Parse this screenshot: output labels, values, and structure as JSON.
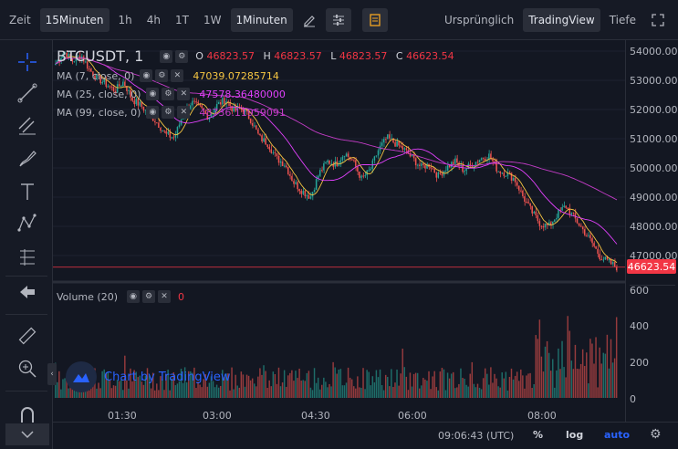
{
  "toolbar": {
    "items": [
      "Zeit",
      "15Minuten",
      "1h",
      "4h",
      "1T",
      "1W"
    ],
    "selected_index": 1,
    "interval_dropdown": "1Minuten",
    "right_items": [
      "Ursprünglich",
      "TradingView",
      "Tiefe"
    ],
    "right_selected_index": 1
  },
  "legend": {
    "symbol": "BTCUSDT, 1",
    "ohlc": [
      {
        "key": "O",
        "value": "46823.57"
      },
      {
        "key": "H",
        "value": "46823.57"
      },
      {
        "key": "L",
        "value": "46823.57"
      },
      {
        "key": "C",
        "value": "46623.54"
      }
    ],
    "ma": [
      {
        "label": "MA (7, close, 0)",
        "value": "47039.07285714",
        "color": "#f5c542"
      },
      {
        "label": "MA (25, close, 0)",
        "value": "47578.36480000",
        "color": "#e040fb"
      },
      {
        "label": "MA (99, close, 0)",
        "value": "48736.11959091",
        "color": "#c33cc6"
      }
    ],
    "volume_label": "Volume (20)",
    "volume_value": "0"
  },
  "price_axis": [
    "54000.00",
    "53000.00",
    "52000.00",
    "51000.00",
    "50000.00",
    "49000.00",
    "48000.00",
    "47000.00"
  ],
  "current_price": "46623.54",
  "volume_axis": [
    "600",
    "400",
    "200",
    "0"
  ],
  "time_axis": [
    "01:30",
    "03:00",
    "04:30",
    "06:00",
    "08:00"
  ],
  "watermark": "Chart by TradingView",
  "bottom": {
    "time": "09:06:43 (UTC)",
    "percent": "%",
    "log": "log",
    "auto": "auto"
  },
  "colors": {
    "up": "#26a69a",
    "down": "#ef5350",
    "accent": "#2962ff"
  },
  "chart_data": {
    "type": "candlestick",
    "xlabel": "",
    "ylabel": "",
    "ylim": [
      46400,
      54300
    ],
    "x_ticks": [
      "01:30",
      "03:00",
      "04:30",
      "06:00",
      "08:00"
    ],
    "close_path": [
      53500,
      53900,
      53600,
      53800,
      53300,
      53000,
      52800,
      52600,
      52900,
      52300,
      52100,
      51800,
      51500,
      51100,
      51000,
      51800,
      52200,
      52000,
      51700,
      52100,
      52300,
      51900,
      52000,
      51600,
      51000,
      50800,
      50300,
      50100,
      49500,
      49200,
      49000,
      49800,
      50200,
      50100,
      50500,
      50200,
      49600,
      49900,
      50600,
      51000,
      50800,
      50600,
      50300,
      50000,
      50100,
      49700,
      50000,
      50200,
      49900,
      50100,
      50300,
      50400,
      49900,
      49800,
      49600,
      49000,
      48500,
      48100,
      48000,
      48400,
      48700,
      48300,
      47900,
      47500,
      47000,
      46800,
      46623
    ]
  }
}
